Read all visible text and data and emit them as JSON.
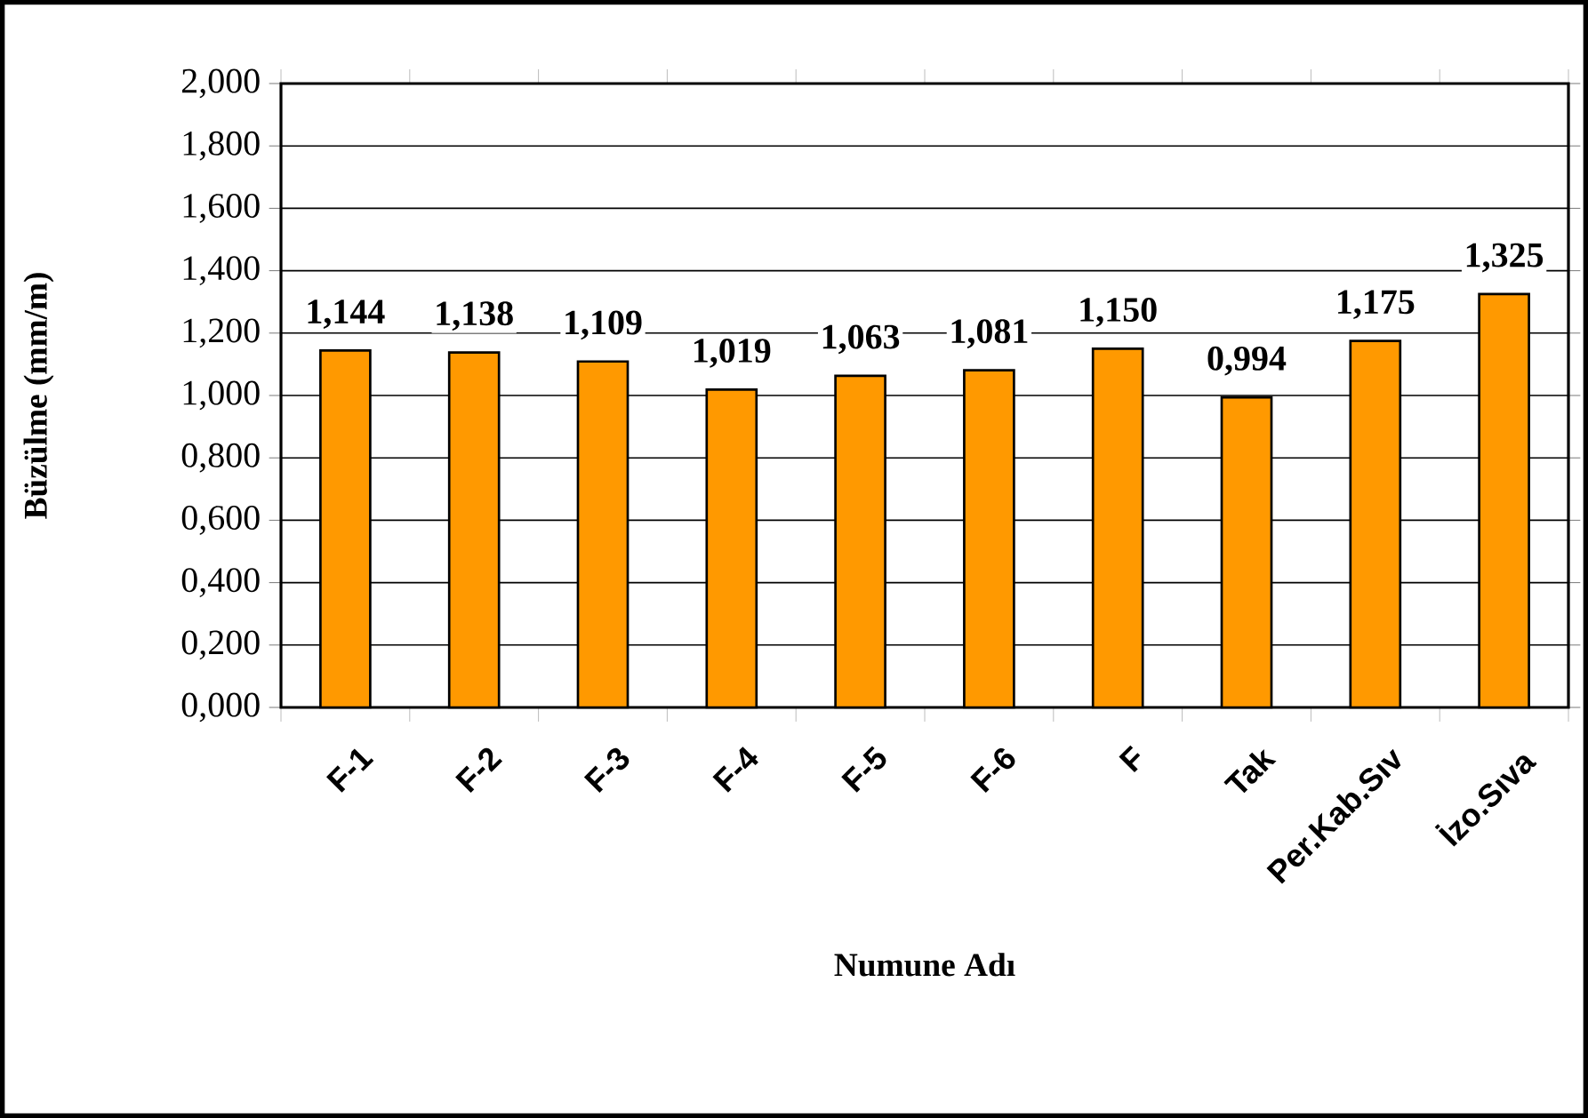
{
  "chart_data": {
    "type": "bar",
    "xlabel": "Numune Adı",
    "ylabel": "Büzülme (mm/m)",
    "categories": [
      "F-1",
      "F-2",
      "F-3",
      "F-4",
      "F-5",
      "F-6",
      "F",
      "Tak",
      "Per.Kab.Sıv",
      "İzo.Sıva"
    ],
    "values": [
      1.144,
      1.138,
      1.109,
      1.019,
      1.063,
      1.081,
      1.15,
      0.994,
      1.175,
      1.325
    ],
    "value_labels": [
      "1,144",
      "1,138",
      "1,109",
      "1,019",
      "1,063",
      "1,081",
      "1,150",
      "0,994",
      "1,175",
      "1,325"
    ],
    "color": "#ff9900",
    "ylim": [
      0,
      2
    ],
    "yticks": [
      {
        "value": 0,
        "label": "0,000"
      },
      {
        "value": 0.2,
        "label": "0,200"
      },
      {
        "value": 0.4,
        "label": "0,400"
      },
      {
        "value": 0.6,
        "label": "0,600"
      },
      {
        "value": 0.8,
        "label": "0,800"
      },
      {
        "value": 1.0,
        "label": "1,000"
      },
      {
        "value": 1.2,
        "label": "1,200"
      },
      {
        "value": 1.4,
        "label": "1,400"
      },
      {
        "value": 1.6,
        "label": "1,600"
      },
      {
        "value": 1.8,
        "label": "1,800"
      },
      {
        "value": 2.0,
        "label": "2,000"
      }
    ],
    "grid": "y"
  }
}
